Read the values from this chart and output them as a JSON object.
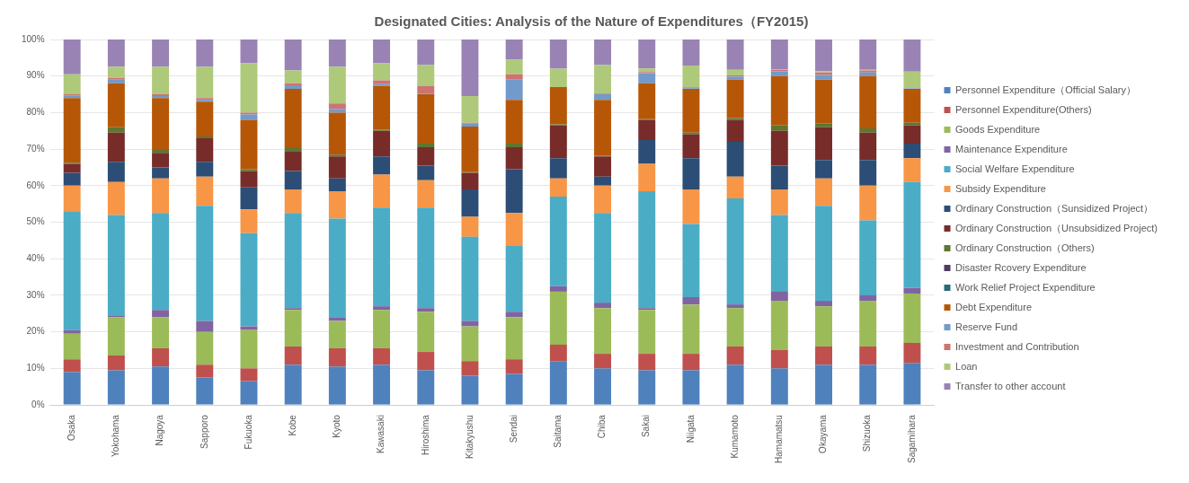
{
  "chart_data": {
    "type": "bar",
    "title": "Designated Cities: Analysis of the Nature of Expenditures（FY2015)",
    "categories": [
      "Osaka",
      "Yokohama",
      "Nagoya",
      "Sapporo",
      "Fukuoka",
      "Kobe",
      "Kyoto",
      "Kawasaki",
      "Hiroshima",
      "Kitakyushu",
      "Sendai",
      "Saitama",
      "Chiba",
      "Sakai",
      "Niigata",
      "Kumamoto",
      "Hamamatsu",
      "Okayama",
      "Shizuoka",
      "Sagamihara"
    ],
    "stacked": true,
    "ylim": [
      0,
      100
    ],
    "yticks": [
      {
        "value": 0,
        "label": "0%"
      },
      {
        "value": 10,
        "label": "10%"
      },
      {
        "value": 20,
        "label": "20%"
      },
      {
        "value": 30,
        "label": "30%"
      },
      {
        "value": 40,
        "label": "40%"
      },
      {
        "value": 50,
        "label": "50%"
      },
      {
        "value": 60,
        "label": "60%"
      },
      {
        "value": 70,
        "label": "70%"
      },
      {
        "value": 80,
        "label": "80%"
      },
      {
        "value": 90,
        "label": "90%"
      },
      {
        "value": 100,
        "label": "100%"
      }
    ],
    "grid": "y",
    "legend": "right",
    "series": [
      {
        "name": "Personnel Expenditure（Official Salary）",
        "color": "#4f81bd",
        "values": [
          9,
          9.5,
          10.5,
          7.5,
          6.5,
          11,
          10.5,
          11,
          9.5,
          8,
          8.5,
          12,
          10,
          9.5,
          9.5,
          11,
          10,
          11,
          11,
          11.5
        ]
      },
      {
        "name": "Personnel Expenditure(Others)",
        "color": "#c0504d",
        "values": [
          3.5,
          4,
          5,
          3.5,
          3.5,
          5,
          5,
          4.5,
          5,
          4,
          4,
          4.5,
          4,
          4.5,
          4.5,
          5,
          5,
          5,
          5,
          5.5
        ]
      },
      {
        "name": "Goods Expenditure",
        "color": "#9bbb59",
        "values": [
          7,
          10.5,
          8.5,
          9,
          10.5,
          10,
          7.5,
          10.5,
          11,
          9.5,
          11.5,
          14.5,
          12.5,
          12,
          13.5,
          10.5,
          13.5,
          11,
          12.5,
          13.5
        ]
      },
      {
        "name": "Maintenance Expenditure",
        "color": "#8064a2",
        "values": [
          1,
          0.5,
          2,
          3,
          1,
          0.5,
          1,
          1,
          1,
          1.5,
          1.5,
          1.5,
          1.5,
          0.5,
          2,
          1,
          2.5,
          1.5,
          1.5,
          1.5
        ]
      },
      {
        "name": "Social Welfare Expenditure",
        "color": "#4bacc6",
        "values": [
          32.5,
          27.5,
          26.5,
          31.5,
          25.5,
          26,
          27,
          27,
          27.5,
          23,
          18,
          24.5,
          24.5,
          32,
          20,
          29,
          21,
          26,
          20.5,
          29
        ]
      },
      {
        "name": "Subsidy Expenditure",
        "color": "#f79646",
        "values": [
          7,
          9,
          9.5,
          8,
          6.5,
          6.5,
          7.5,
          9,
          7.5,
          5.5,
          9,
          5,
          7.5,
          7.5,
          9.5,
          6,
          7,
          7.5,
          9.5,
          6.5
        ]
      },
      {
        "name": "Ordinary Construction（Sunsidized Project）",
        "color": "#2c4d75",
        "values": [
          3.5,
          5.5,
          3,
          4,
          6,
          5,
          3.5,
          5,
          4,
          7.5,
          12,
          5.5,
          2.5,
          6.5,
          8.5,
          9.5,
          6.5,
          5,
          7,
          4
        ]
      },
      {
        "name": "Ordinary Construction（Unsubsidized Project)",
        "color": "#772c2a",
        "values": [
          2.5,
          8,
          4,
          6.5,
          4.5,
          5.5,
          6,
          7,
          5,
          4.5,
          6,
          9,
          5.5,
          5.5,
          6.5,
          6,
          9.5,
          9,
          7.5,
          5
        ]
      },
      {
        "name": "Ordinary Construction（Others)",
        "color": "#5f7530",
        "values": [
          0.3,
          1.5,
          1,
          0.5,
          0.5,
          1,
          0.5,
          0.3,
          1,
          0.2,
          1,
          0.3,
          0.2,
          0.2,
          0.5,
          0.5,
          1.5,
          1,
          1.2,
          0.7
        ]
      },
      {
        "name": "Disaster Rcovery Expenditure",
        "color": "#4d3b62",
        "values": [
          0,
          0,
          0,
          0,
          0,
          0,
          0,
          0,
          0,
          0,
          0,
          0,
          0,
          0,
          0,
          0,
          0,
          0,
          0,
          0
        ]
      },
      {
        "name": "Work Relief Project Expenditure",
        "color": "#276a7c",
        "values": [
          0,
          0,
          0,
          0,
          0,
          0,
          0,
          0,
          0,
          0,
          0,
          0,
          0,
          0,
          0,
          0,
          0,
          0,
          0,
          0
        ]
      },
      {
        "name": "Debt Expenditure",
        "color": "#b65708",
        "values": [
          17.7,
          12,
          14,
          9.5,
          13.5,
          16,
          11.5,
          12,
          13.5,
          12.5,
          12,
          10.2,
          15.3,
          9.8,
          12,
          10.5,
          13.5,
          12,
          14.3,
          9.3
        ]
      },
      {
        "name": "Reserve Fund",
        "color": "#729aca",
        "values": [
          0.7,
          1,
          0.5,
          0.5,
          1.5,
          1,
          1,
          0.5,
          0.2,
          0.8,
          5.5,
          0,
          1.5,
          2.8,
          0.2,
          0.8,
          1.3,
          1.3,
          1,
          0.1
        ]
      },
      {
        "name": "Investment and Contribution",
        "color": "#cd7371",
        "values": [
          0.3,
          0.5,
          0.5,
          0.5,
          0.5,
          0.5,
          1.5,
          1,
          2,
          0.2,
          1.5,
          0,
          0.2,
          0.3,
          0.2,
          0.4,
          0.4,
          0.7,
          0.5,
          0.1
        ]
      },
      {
        "name": "Loan",
        "color": "#afc97a",
        "values": [
          5.5,
          3,
          7.5,
          8.5,
          13.5,
          3.5,
          10,
          4.7,
          5.8,
          7.3,
          4,
          5,
          7.8,
          1,
          6,
          1.5,
          0.2,
          0.3,
          0.2,
          4.5
        ]
      },
      {
        "name": "Transfer to other account",
        "color": "#9983b5",
        "values": [
          9.5,
          7.5,
          7.5,
          7.5,
          6.5,
          8.5,
          7.5,
          6.5,
          7,
          15.5,
          5.5,
          8,
          7,
          7.9,
          7.1,
          8.3,
          8.1,
          8.7,
          8.3,
          8.8
        ]
      }
    ]
  }
}
